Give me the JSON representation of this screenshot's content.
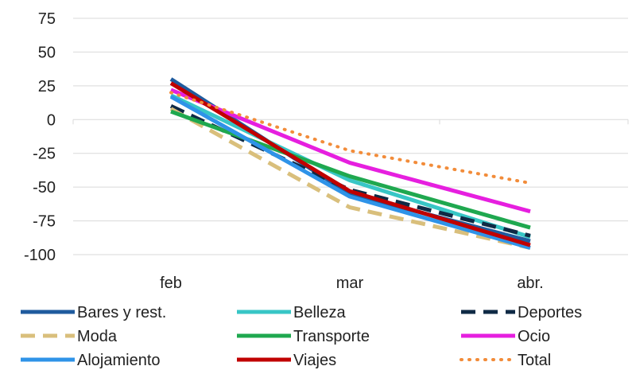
{
  "chart_data": {
    "type": "line",
    "categories": [
      "feb",
      "mar",
      "abr."
    ],
    "ylim": [
      -100,
      75
    ],
    "yticks": [
      75,
      50,
      25,
      0,
      -25,
      -50,
      -75,
      -100
    ],
    "grid": "horizontal",
    "legend_position": "bottom",
    "series": [
      {
        "name": "Bares y rest.",
        "values": [
          30,
          -55,
          -90
        ],
        "color": "#1f5b9e",
        "dash": "solid"
      },
      {
        "name": "Belleza",
        "values": [
          18,
          -45,
          -87
        ],
        "color": "#38c6c6",
        "dash": "solid"
      },
      {
        "name": "Deportes",
        "values": [
          10,
          -52,
          -86
        ],
        "color": "#0f2a45",
        "dash": "dashed"
      },
      {
        "name": "Moda",
        "values": [
          8,
          -65,
          -95
        ],
        "color": "#d9bf7c",
        "dash": "dashed"
      },
      {
        "name": "Transporte",
        "values": [
          6,
          -42,
          -80
        ],
        "color": "#1fa84f",
        "dash": "solid"
      },
      {
        "name": "Ocio",
        "values": [
          22,
          -32,
          -68
        ],
        "color": "#e61fdf",
        "dash": "solid"
      },
      {
        "name": "Alojamiento",
        "values": [
          17,
          -57,
          -95
        ],
        "color": "#2f93e8",
        "dash": "solid"
      },
      {
        "name": "Viajes",
        "values": [
          27,
          -53,
          -93
        ],
        "color": "#c00000",
        "dash": "solid"
      },
      {
        "name": "Total",
        "values": [
          20,
          -23,
          -47
        ],
        "color": "#f28c3a",
        "dash": "dotted"
      }
    ]
  }
}
